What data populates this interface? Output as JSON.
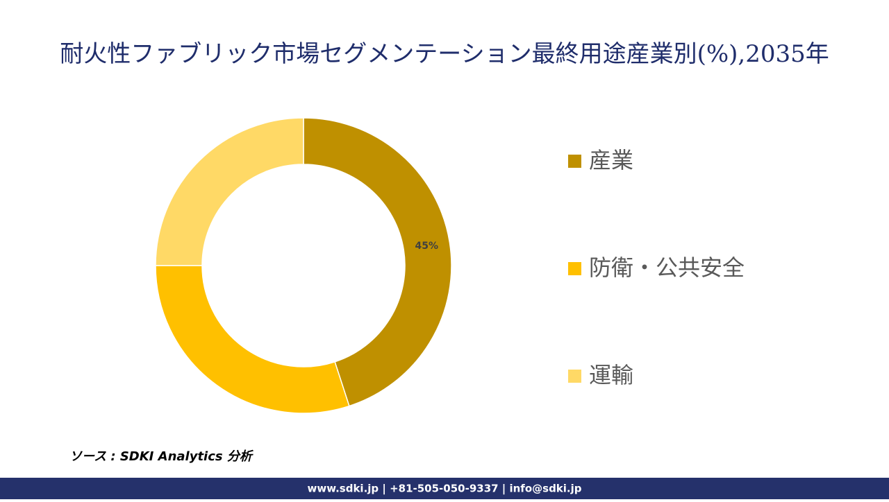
{
  "chart_data": {
    "type": "donut",
    "title": "耐火性ファブリック市場セグメンテーション最終用途産業別(%),2035年",
    "categories": [
      "産業",
      "防衛・公共安全",
      "運輸"
    ],
    "values": [
      45,
      30,
      25
    ],
    "value_labels": [
      "45%",
      null,
      null
    ],
    "colors": [
      "#BF9000",
      "#FFC000",
      "#FFD966"
    ],
    "legend": "right"
  },
  "source": "ソース : SDKI Analytics 分析",
  "footer": "www.sdki.jp | +81-505-050-9337 | info@sdki.jp"
}
